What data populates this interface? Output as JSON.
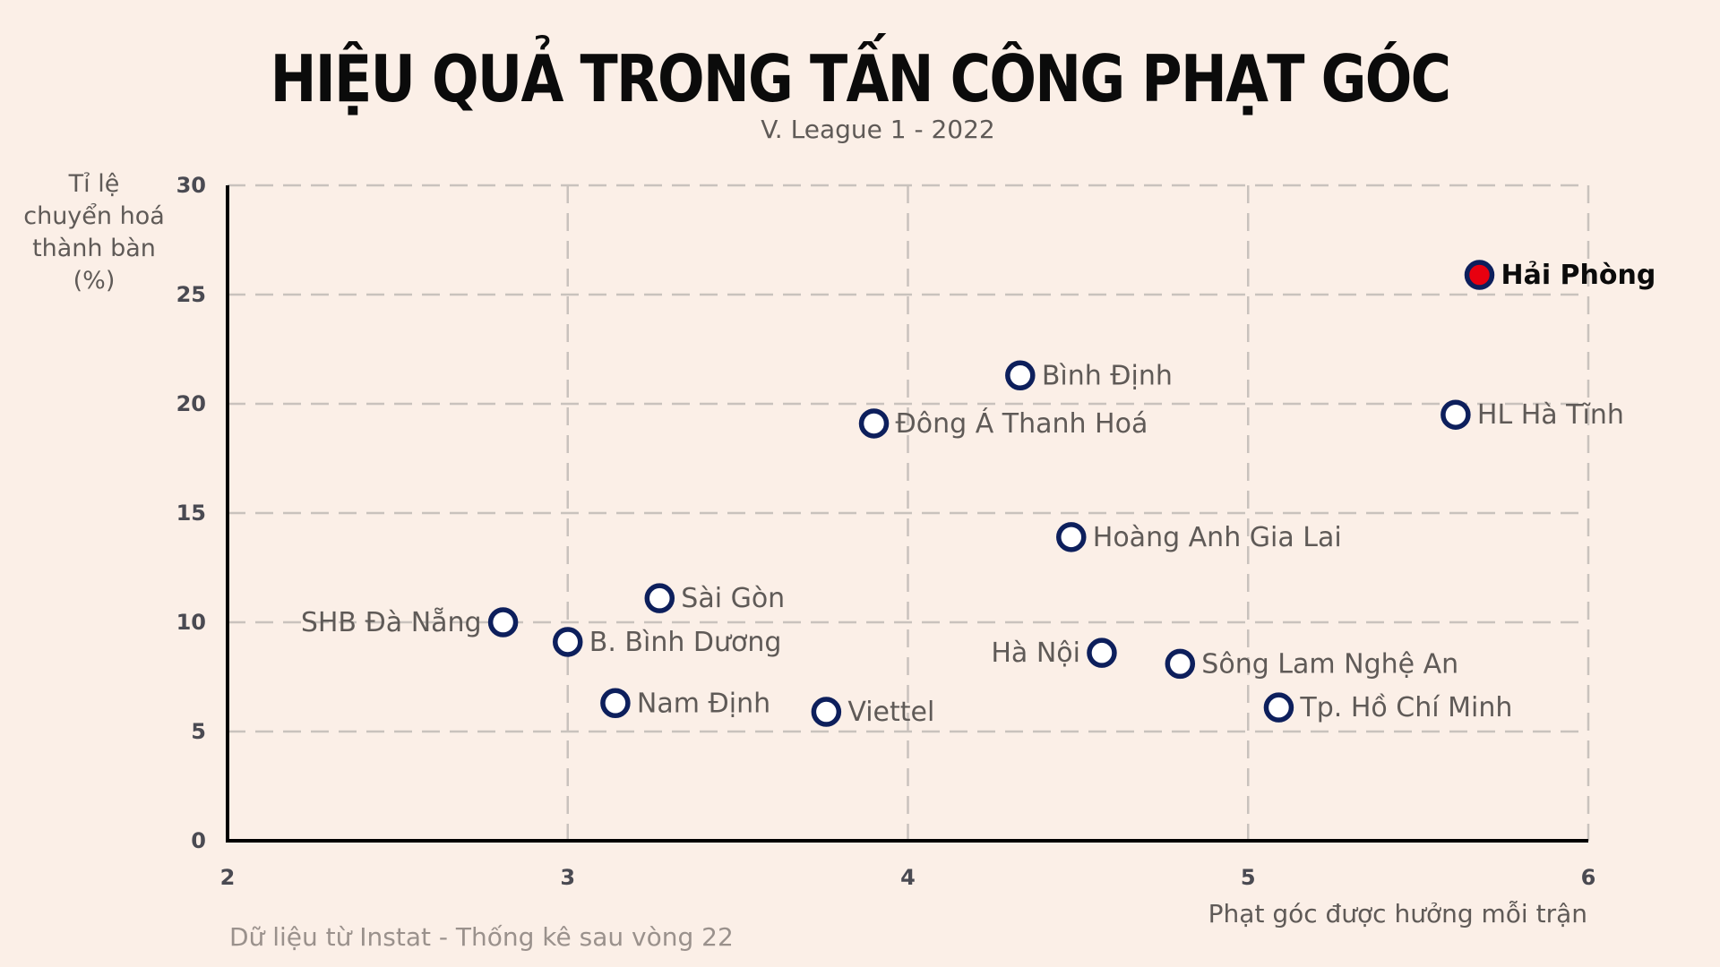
{
  "header": {
    "title": "HIỆU QUẢ TRONG TẤN CÔNG PHẠT GÓC",
    "subtitle": "V. League 1 - 2022"
  },
  "axes": {
    "ylabel": "Tỉ lệ chuyển hoá thành bàn (%)",
    "ylabel_lines": [
      "Tỉ lệ",
      "chuyển hoá",
      "thành bàn",
      "(%)"
    ],
    "xlabel": "Phạt góc được hưởng mỗi trận",
    "yticks": [
      "0",
      "5",
      "10",
      "15",
      "20",
      "25",
      "30"
    ],
    "xticks": [
      "2",
      "3",
      "4",
      "5",
      "6"
    ]
  },
  "footer": {
    "source": "Dữ liệu từ Instat - Thống kê sau vòng 22"
  },
  "colors": {
    "background": "#fbefe7",
    "marker_stroke": "#0d1f5c",
    "highlight_fill": "#e8000f",
    "grid": "#c9c2bd"
  },
  "chart_data": {
    "type": "scatter",
    "title": "HIỆU QUẢ TRONG TẤN CÔNG PHẠT GÓC",
    "subtitle": "V. League 1 - 2022",
    "xlabel": "Phạt góc được hưởng mỗi trận",
    "ylabel": "Tỉ lệ chuyển hoá thành bàn (%)",
    "xlim": [
      2,
      6
    ],
    "ylim": [
      0,
      30
    ],
    "grid": true,
    "annotation": "Dữ liệu từ Instat - Thống kê sau vòng 22",
    "points": [
      {
        "label": "Hải Phòng",
        "x": 5.68,
        "y": 25.9,
        "highlight": true,
        "label_side": "right"
      },
      {
        "label": "HL Hà Tĩnh",
        "x": 5.61,
        "y": 19.5,
        "label_side": "right"
      },
      {
        "label": "Bình Định",
        "x": 4.33,
        "y": 21.3,
        "label_side": "right"
      },
      {
        "label": "Đông Á Thanh Hoá",
        "x": 3.9,
        "y": 19.1,
        "label_side": "right"
      },
      {
        "label": "Hoàng Anh Gia Lai",
        "x": 4.48,
        "y": 13.9,
        "label_side": "right"
      },
      {
        "label": "Sài Gòn",
        "x": 3.27,
        "y": 11.1,
        "label_side": "right"
      },
      {
        "label": "SHB Đà Nẵng",
        "x": 2.81,
        "y": 10.0,
        "label_side": "left"
      },
      {
        "label": "B. Bình Dương",
        "x": 3.0,
        "y": 9.1,
        "label_side": "right"
      },
      {
        "label": "Hà Nội",
        "x": 4.57,
        "y": 8.6,
        "label_side": "left"
      },
      {
        "label": "Sông Lam Nghệ An",
        "x": 4.8,
        "y": 8.1,
        "label_side": "right"
      },
      {
        "label": "Nam Định",
        "x": 3.14,
        "y": 6.3,
        "label_side": "right"
      },
      {
        "label": "Viettel",
        "x": 3.76,
        "y": 5.9,
        "label_side": "right"
      },
      {
        "label": "Tp. Hồ Chí Minh",
        "x": 5.09,
        "y": 6.1,
        "label_side": "right"
      }
    ]
  }
}
